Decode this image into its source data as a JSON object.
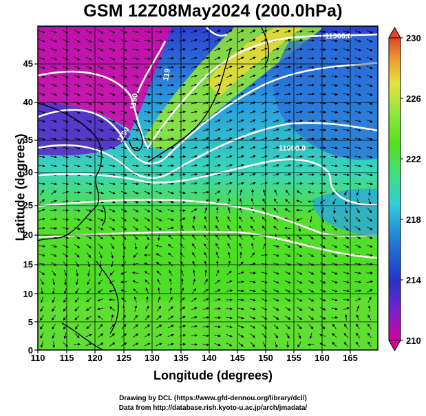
{
  "title": "GSM 12Z08May2024 (200.0hPa)",
  "xlabel": "Longitude (degrees)",
  "ylabel": "Latitude (degrees)",
  "credit_line1": "Drawing by DCL (https://www.gfd-dennou.org/library/dcl/)",
  "credit_line2": "Data from http://database.rish.kyoto-u.ac.jp/arch/jmadata/",
  "x_ticks": [
    "110",
    "115",
    "120",
    "125",
    "130",
    "135",
    "140",
    "145",
    "150",
    "155",
    "160",
    "165"
  ],
  "y_ticks": [
    "0",
    "5",
    "10",
    "15",
    "20",
    "25",
    "30",
    "35",
    "40",
    "45"
  ],
  "colorbar_ticks": [
    "230",
    "226",
    "222",
    "218",
    "214",
    "210"
  ],
  "contour_labels": [
    "11900.0",
    "1190",
    "119",
    "1190",
    "11900.0"
  ],
  "colors": {
    "scale": [
      "#d6009b",
      "#7a1fd0",
      "#2234c8",
      "#1f8ad9",
      "#2fd0d8",
      "#3ee07a",
      "#54e21c",
      "#8fe83a",
      "#e6e23c",
      "#f09a2c",
      "#e0452e"
    ],
    "contour": "#ffffff",
    "coast": "#000000"
  }
}
